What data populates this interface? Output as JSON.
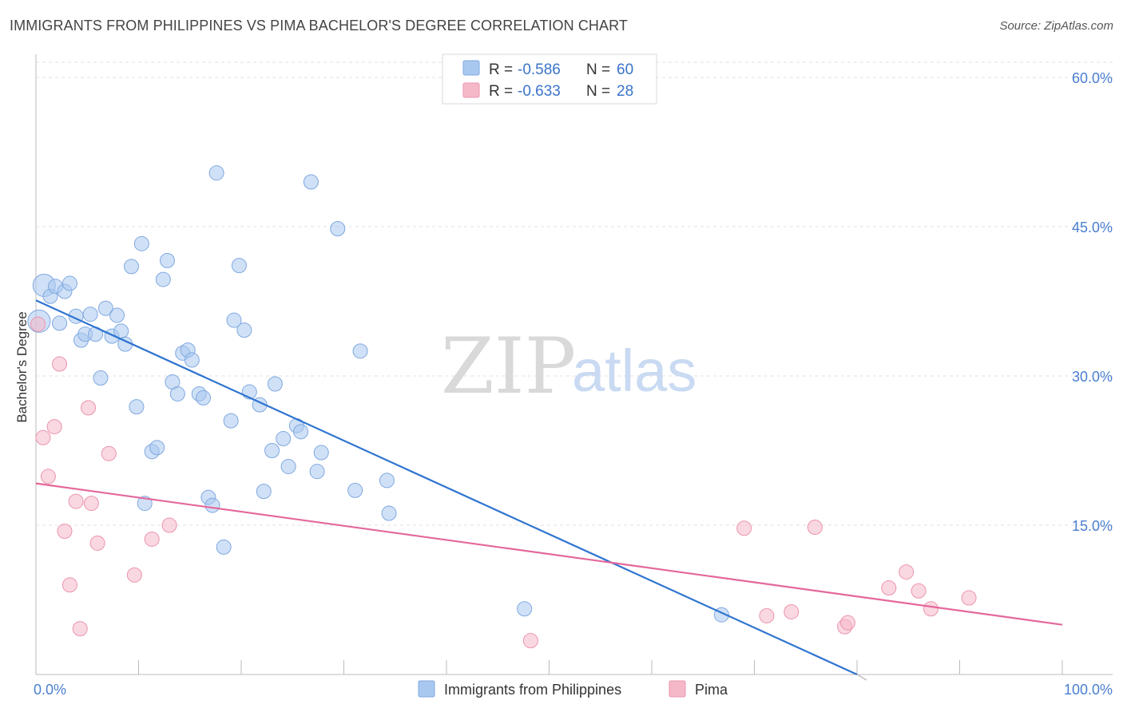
{
  "header": {
    "title": "IMMIGRANTS FROM PHILIPPINES VS PIMA BACHELOR'S DEGREE CORRELATION CHART",
    "source": "Source: ZipAtlas.com"
  },
  "watermark": {
    "zip": "ZIP",
    "atlas": "atlas"
  },
  "legend_top": {
    "rows": [
      {
        "r_label": "R = ",
        "r_value": "-0.586",
        "n_label": "N = ",
        "n_value": "60",
        "color": "#a9c8f0"
      },
      {
        "r_label": "R = ",
        "r_value": "-0.633",
        "n_label": "N = ",
        "n_value": "28",
        "color": "#f5b8c9"
      }
    ]
  },
  "legend_bottom": {
    "items": [
      {
        "label": "Immigrants from Philippines",
        "color": "#a9c8f0"
      },
      {
        "label": "Pima",
        "color": "#f5b8c9"
      }
    ]
  },
  "chart_data": {
    "type": "scatter",
    "title": "IMMIGRANTS FROM PHILIPPINES VS PIMA BACHELOR'S DEGREE CORRELATION CHART",
    "xlabel": "",
    "ylabel": "Bachelor's Degree",
    "xlim": [
      0,
      100
    ],
    "ylim": [
      0,
      60
    ],
    "x_tick_labels": [
      {
        "value": 0,
        "label": "0.0%"
      },
      {
        "value": 100,
        "label": "100.0%"
      }
    ],
    "y_tick_labels": [
      {
        "value": 15,
        "label": "15.0%"
      },
      {
        "value": 30,
        "label": "30.0%"
      },
      {
        "value": 45,
        "label": "45.0%"
      },
      {
        "value": 60,
        "label": "60.0%"
      }
    ],
    "grid": true,
    "legend_position": "top-center",
    "colors": {
      "series1_fill": "#a9c8f0",
      "series1_line": "#2f74d0",
      "series2_fill": "#f5b8c9",
      "series2_line": "#e4679a",
      "tick_text": "#4a7fd0"
    },
    "series": [
      {
        "name": "Immigrants from Philippines",
        "r": -0.586,
        "n": 60,
        "trend": {
          "x": [
            0,
            80
          ],
          "y": [
            37.6,
            0
          ]
        },
        "points": [
          {
            "x": 0.8,
            "y": 39.1
          },
          {
            "x": 1.4,
            "y": 38.0
          },
          {
            "x": 1.9,
            "y": 39.0
          },
          {
            "x": 2.3,
            "y": 35.3
          },
          {
            "x": 2.8,
            "y": 38.5
          },
          {
            "x": 3.3,
            "y": 39.3
          },
          {
            "x": 3.9,
            "y": 36.0
          },
          {
            "x": 4.4,
            "y": 33.6
          },
          {
            "x": 4.8,
            "y": 34.2
          },
          {
            "x": 5.3,
            "y": 36.2
          },
          {
            "x": 5.8,
            "y": 34.2
          },
          {
            "x": 6.3,
            "y": 29.8
          },
          {
            "x": 6.8,
            "y": 36.8
          },
          {
            "x": 7.4,
            "y": 34.0
          },
          {
            "x": 7.9,
            "y": 36.1
          },
          {
            "x": 8.3,
            "y": 34.5
          },
          {
            "x": 8.7,
            "y": 33.2
          },
          {
            "x": 9.3,
            "y": 41.0
          },
          {
            "x": 9.8,
            "y": 26.9
          },
          {
            "x": 10.3,
            "y": 43.3
          },
          {
            "x": 10.6,
            "y": 17.2
          },
          {
            "x": 11.3,
            "y": 22.4
          },
          {
            "x": 11.8,
            "y": 22.8
          },
          {
            "x": 12.4,
            "y": 39.7
          },
          {
            "x": 12.8,
            "y": 41.6
          },
          {
            "x": 13.3,
            "y": 29.4
          },
          {
            "x": 13.8,
            "y": 28.2
          },
          {
            "x": 14.3,
            "y": 32.3
          },
          {
            "x": 14.8,
            "y": 32.6
          },
          {
            "x": 15.2,
            "y": 31.6
          },
          {
            "x": 15.9,
            "y": 28.2
          },
          {
            "x": 16.3,
            "y": 27.8
          },
          {
            "x": 16.8,
            "y": 17.8
          },
          {
            "x": 17.2,
            "y": 17.0
          },
          {
            "x": 17.6,
            "y": 50.4
          },
          {
            "x": 18.3,
            "y": 12.8
          },
          {
            "x": 19.0,
            "y": 25.5
          },
          {
            "x": 19.3,
            "y": 35.6
          },
          {
            "x": 19.8,
            "y": 41.1
          },
          {
            "x": 20.3,
            "y": 34.6
          },
          {
            "x": 20.8,
            "y": 28.4
          },
          {
            "x": 21.8,
            "y": 27.1
          },
          {
            "x": 22.2,
            "y": 18.4
          },
          {
            "x": 23.0,
            "y": 22.5
          },
          {
            "x": 23.3,
            "y": 29.2
          },
          {
            "x": 24.1,
            "y": 23.7
          },
          {
            "x": 24.6,
            "y": 20.9
          },
          {
            "x": 25.4,
            "y": 25.0
          },
          {
            "x": 25.8,
            "y": 24.4
          },
          {
            "x": 26.8,
            "y": 49.5
          },
          {
            "x": 27.4,
            "y": 20.4
          },
          {
            "x": 27.8,
            "y": 22.3
          },
          {
            "x": 29.4,
            "y": 44.8
          },
          {
            "x": 31.1,
            "y": 18.5
          },
          {
            "x": 31.6,
            "y": 32.5
          },
          {
            "x": 34.2,
            "y": 19.5
          },
          {
            "x": 34.4,
            "y": 16.2
          },
          {
            "x": 47.6,
            "y": 6.6
          },
          {
            "x": 66.8,
            "y": 6.0
          },
          {
            "x": 0.3,
            "y": 35.5
          }
        ]
      },
      {
        "name": "Pima",
        "r": -0.633,
        "n": 28,
        "trend": {
          "x": [
            0,
            100
          ],
          "y": [
            19.2,
            5.0
          ]
        },
        "points": [
          {
            "x": 0.2,
            "y": 35.2
          },
          {
            "x": 0.7,
            "y": 23.8
          },
          {
            "x": 1.2,
            "y": 19.9
          },
          {
            "x": 1.8,
            "y": 24.9
          },
          {
            "x": 2.3,
            "y": 31.2
          },
          {
            "x": 2.8,
            "y": 14.4
          },
          {
            "x": 3.3,
            "y": 9.0
          },
          {
            "x": 3.9,
            "y": 17.4
          },
          {
            "x": 4.3,
            "y": 4.6
          },
          {
            "x": 5.1,
            "y": 26.8
          },
          {
            "x": 5.4,
            "y": 17.2
          },
          {
            "x": 6.0,
            "y": 13.2
          },
          {
            "x": 7.1,
            "y": 22.2
          },
          {
            "x": 9.6,
            "y": 10.0
          },
          {
            "x": 11.3,
            "y": 13.6
          },
          {
            "x": 13.0,
            "y": 15.0
          },
          {
            "x": 48.2,
            "y": 3.4
          },
          {
            "x": 69.0,
            "y": 14.7
          },
          {
            "x": 71.2,
            "y": 5.9
          },
          {
            "x": 73.6,
            "y": 6.3
          },
          {
            "x": 75.9,
            "y": 14.8
          },
          {
            "x": 78.8,
            "y": 4.8
          },
          {
            "x": 79.1,
            "y": 5.2
          },
          {
            "x": 83.1,
            "y": 8.7
          },
          {
            "x": 84.8,
            "y": 10.3
          },
          {
            "x": 86.0,
            "y": 8.4
          },
          {
            "x": 87.2,
            "y": 6.6
          },
          {
            "x": 90.9,
            "y": 7.7
          }
        ]
      }
    ]
  }
}
